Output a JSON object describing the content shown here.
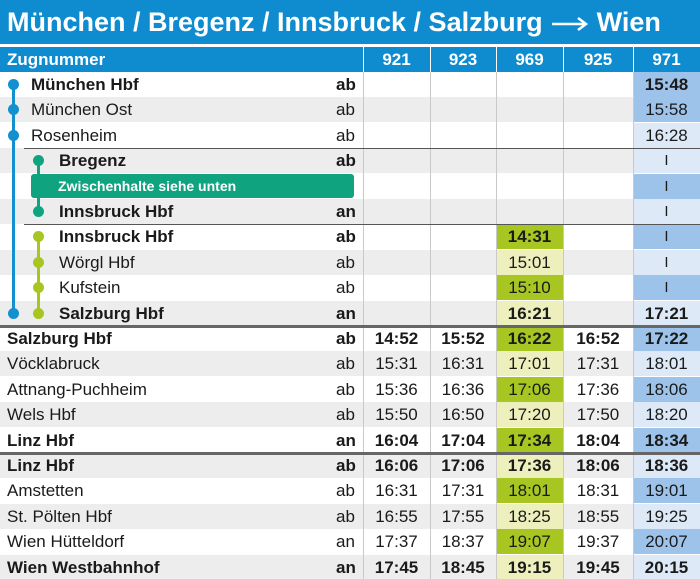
{
  "title": {
    "route": "München / Bregenz / Innsbruck / Salzburg",
    "arrow_icon": "long-right-arrow-icon",
    "destination": "Wien"
  },
  "header": {
    "label": "Zugnummer",
    "trains": [
      "921",
      "923",
      "969",
      "925",
      "971"
    ]
  },
  "note": "Zwischenhalte siehe unten",
  "colors": {
    "header_blue": "#0e8ccf",
    "line_blue": "#1390cf",
    "line_teal": "#10a37f",
    "line_lime": "#a7c622",
    "col969_light": "#edf0bd",
    "col969_dark": "#a7c622",
    "col971_light": "#dde9f6",
    "col971_dark": "#9ec3ea",
    "zebra": "#ededed"
  },
  "rows": [
    {
      "station": "München Hbf",
      "ab": "ab",
      "bold": true,
      "line": "blue",
      "times": [
        "",
        "",
        "",
        "",
        "15:48"
      ],
      "shade": [
        "",
        "",
        "",
        "",
        "dark"
      ]
    },
    {
      "station": "München Ost",
      "ab": "ab",
      "bold": false,
      "line": "blue",
      "times": [
        "",
        "",
        "",
        "",
        "15:58"
      ],
      "shade": [
        "",
        "",
        "",
        "",
        "dark"
      ]
    },
    {
      "station": "Rosenheim",
      "ab": "ab",
      "bold": false,
      "line": "blue",
      "times": [
        "",
        "",
        "",
        "",
        "16:28"
      ],
      "shade": [
        "",
        "",
        "",
        "",
        "light"
      ]
    },
    {
      "station": "Bregenz",
      "ab": "ab",
      "bold": true,
      "line": "teal",
      "times": [
        "",
        "",
        "",
        "",
        "I"
      ],
      "shade": [
        "",
        "",
        "",
        "",
        "light"
      ]
    },
    {
      "station": "",
      "ab": "",
      "bold": false,
      "line": "teal",
      "times": [
        "",
        "",
        "",
        "",
        "I"
      ],
      "shade": [
        "",
        "",
        "",
        "",
        "dark"
      ]
    },
    {
      "station": "Innsbruck Hbf",
      "ab": "an",
      "bold": true,
      "line": "teal",
      "times": [
        "",
        "",
        "",
        "",
        "I"
      ],
      "shade": [
        "",
        "",
        "",
        "",
        "light"
      ]
    },
    {
      "station": "Innsbruck Hbf",
      "ab": "ab",
      "bold": true,
      "line": "lime",
      "times": [
        "",
        "",
        "14:31",
        "",
        "I"
      ],
      "shade": [
        "",
        "",
        "dark",
        "",
        "dark"
      ]
    },
    {
      "station": "Wörgl Hbf",
      "ab": "ab",
      "bold": false,
      "line": "lime",
      "times": [
        "",
        "",
        "15:01",
        "",
        "I"
      ],
      "shade": [
        "",
        "",
        "light",
        "",
        "light"
      ]
    },
    {
      "station": "Kufstein",
      "ab": "ab",
      "bold": false,
      "line": "lime",
      "times": [
        "",
        "",
        "15:10",
        "",
        "I"
      ],
      "shade": [
        "",
        "",
        "dark",
        "",
        "dark"
      ]
    },
    {
      "station": "Salzburg Hbf",
      "ab": "an",
      "bold": true,
      "line": "lime",
      "times": [
        "",
        "",
        "16:21",
        "",
        "17:21"
      ],
      "shade": [
        "",
        "",
        "light",
        "",
        "light"
      ]
    },
    {
      "station": "Salzburg Hbf",
      "ab": "ab",
      "bold": true,
      "line": "",
      "times": [
        "14:52",
        "15:52",
        "16:22",
        "16:52",
        "17:22"
      ],
      "shade": [
        "",
        "",
        "dark",
        "",
        "dark"
      ]
    },
    {
      "station": "Vöcklabruck",
      "ab": "ab",
      "bold": false,
      "line": "",
      "times": [
        "15:31",
        "16:31",
        "17:01",
        "17:31",
        "18:01"
      ],
      "shade": [
        "",
        "",
        "light",
        "",
        "light"
      ]
    },
    {
      "station": "Attnang-Puchheim",
      "ab": "ab",
      "bold": false,
      "line": "",
      "times": [
        "15:36",
        "16:36",
        "17:06",
        "17:36",
        "18:06"
      ],
      "shade": [
        "",
        "",
        "dark",
        "",
        "dark"
      ]
    },
    {
      "station": "Wels Hbf",
      "ab": "ab",
      "bold": false,
      "line": "",
      "times": [
        "15:50",
        "16:50",
        "17:20",
        "17:50",
        "18:20"
      ],
      "shade": [
        "",
        "",
        "light",
        "",
        "light"
      ]
    },
    {
      "station": "Linz Hbf",
      "ab": "an",
      "bold": true,
      "line": "",
      "times": [
        "16:04",
        "17:04",
        "17:34",
        "18:04",
        "18:34"
      ],
      "shade": [
        "",
        "",
        "dark",
        "",
        "dark"
      ]
    },
    {
      "station": "Linz Hbf",
      "ab": "ab",
      "bold": true,
      "line": "",
      "times": [
        "16:06",
        "17:06",
        "17:36",
        "18:06",
        "18:36"
      ],
      "shade": [
        "",
        "",
        "light",
        "",
        "light"
      ]
    },
    {
      "station": "Amstetten",
      "ab": "ab",
      "bold": false,
      "line": "",
      "times": [
        "16:31",
        "17:31",
        "18:01",
        "18:31",
        "19:01"
      ],
      "shade": [
        "",
        "",
        "dark",
        "",
        "dark"
      ]
    },
    {
      "station": "St. Pölten Hbf",
      "ab": "ab",
      "bold": false,
      "line": "",
      "times": [
        "16:55",
        "17:55",
        "18:25",
        "18:55",
        "19:25"
      ],
      "shade": [
        "",
        "",
        "light",
        "",
        "light"
      ]
    },
    {
      "station": "Wien Hütteldorf",
      "ab": "an",
      "bold": false,
      "line": "",
      "times": [
        "17:37",
        "18:37",
        "19:07",
        "19:37",
        "20:07"
      ],
      "shade": [
        "",
        "",
        "dark",
        "",
        "dark"
      ]
    },
    {
      "station": "Wien Westbahnhof",
      "ab": "an",
      "bold": true,
      "line": "",
      "times": [
        "17:45",
        "18:45",
        "19:15",
        "19:45",
        "20:15"
      ],
      "shade": [
        "",
        "",
        "light",
        "",
        "light"
      ]
    }
  ]
}
